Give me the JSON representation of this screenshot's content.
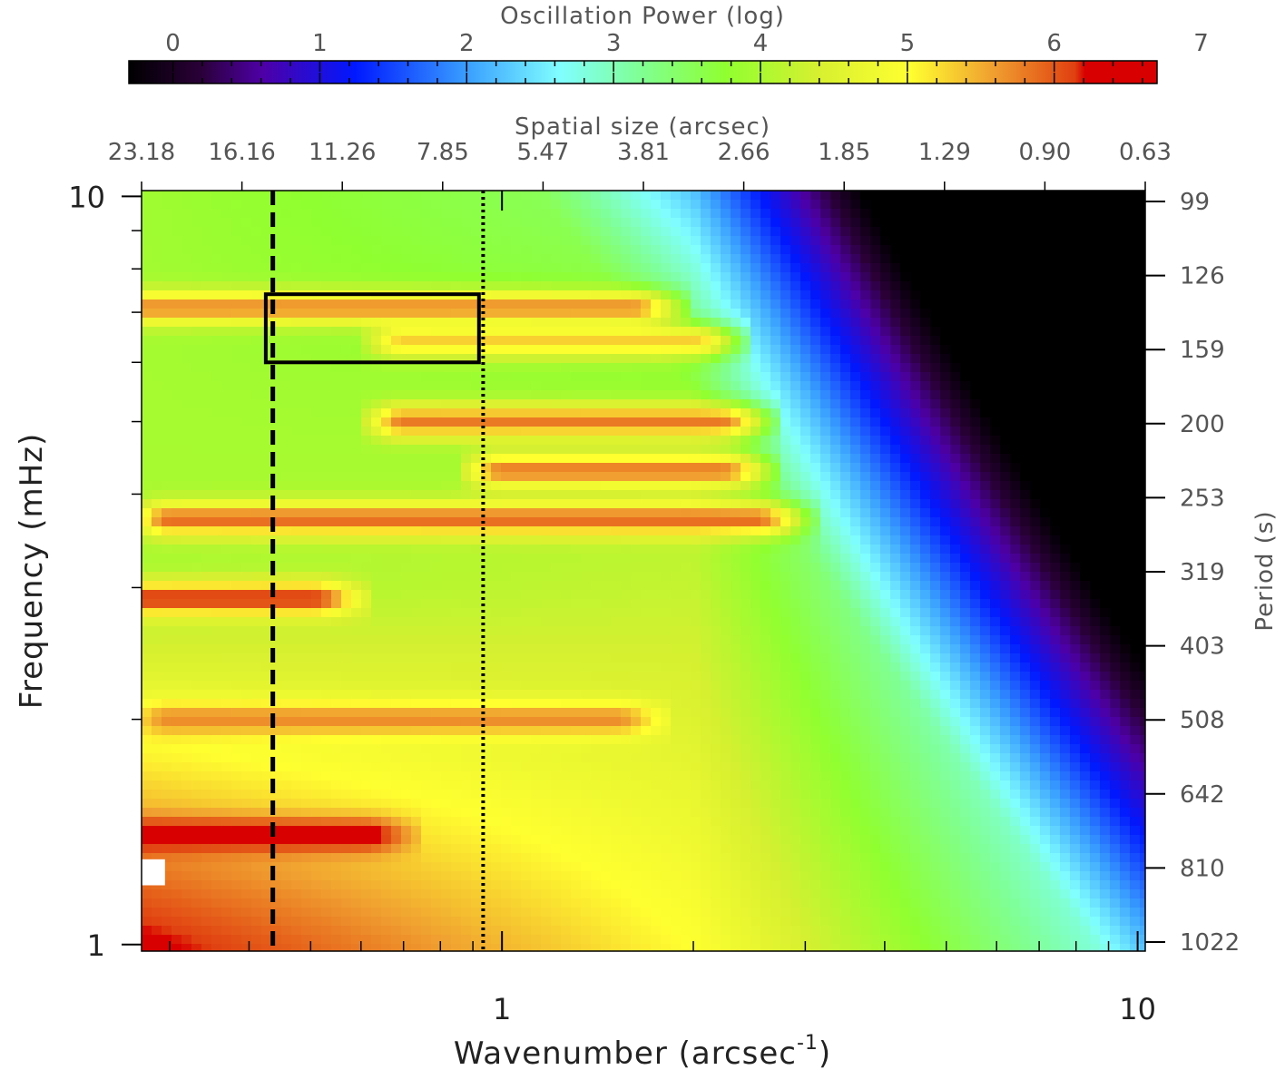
{
  "chart_data": {
    "type": "heatmap",
    "colorbar": {
      "title": "Oscillation Power (log)",
      "range": [
        -0.3,
        6.7
      ],
      "ticks": [
        0,
        1,
        2,
        3,
        4,
        5,
        6,
        7
      ],
      "colormap": "rainbow (black-purple-blue-cyan-green-yellow-orange-red)"
    },
    "x_bottom": {
      "label_main": "Wavenumber (arcsec",
      "label_superscript": "-1",
      "label_close": ")",
      "scale": "log",
      "range": [
        0.271,
        10.28
      ],
      "major_ticks": [
        1,
        10
      ],
      "major_labels": [
        "1",
        "10"
      ],
      "minor_ticks": [
        0.3,
        0.4,
        0.5,
        0.6,
        0.7,
        0.8,
        0.9,
        2,
        3,
        4,
        5,
        6,
        7,
        8,
        9
      ]
    },
    "x_top": {
      "label": "Spatial size (arcsec)",
      "tick_labels": [
        "23.18",
        "16.16",
        "11.26",
        "7.85",
        "5.47",
        "3.81",
        "2.66",
        "1.85",
        "1.29",
        "0.90",
        "0.63"
      ]
    },
    "y_left": {
      "label": "Frequency (mHz)",
      "scale": "log",
      "range": [
        0.98,
        10.18
      ],
      "major_ticks": [
        1,
        10
      ],
      "major_labels": [
        "1",
        "10"
      ],
      "minor_ticks": [
        2,
        3,
        4,
        5,
        6,
        7,
        8,
        9
      ]
    },
    "y_right": {
      "label": "Period (s)",
      "tick_labels": [
        "99",
        "126",
        "159",
        "200",
        "253",
        "319",
        "403",
        "508",
        "642",
        "810",
        "1022"
      ]
    },
    "power_model": {
      "baseline": [
        {
          "k": 0.271,
          "f": 1.0,
          "p": 6.3
        },
        {
          "k": 0.271,
          "f": 3.0,
          "p": 4.0
        },
        {
          "k": 0.271,
          "f": 10.0,
          "p": 3.9
        },
        {
          "k": 2.0,
          "f": 1.0,
          "p": 5.0
        },
        {
          "k": 2.0,
          "f": 10.0,
          "p": 3.4
        },
        {
          "k": 10.0,
          "f": 1.0,
          "p": 2.6
        },
        {
          "k": 10.0,
          "f": 10.0,
          "p": 0.0
        }
      ],
      "ridges": [
        {
          "f": 7.1,
          "k_from": 0.271,
          "k_to": 1.6,
          "p": 5.7
        },
        {
          "f": 6.4,
          "k_from": 0.7,
          "k_to": 2.0,
          "p": 5.3
        },
        {
          "f": 5.0,
          "k_from": 0.7,
          "k_to": 2.2,
          "p": 5.8
        },
        {
          "f": 4.3,
          "k_from": 1.0,
          "k_to": 2.2,
          "p": 5.8
        },
        {
          "f": 3.7,
          "k_from": 0.3,
          "k_to": 2.5,
          "p": 5.9
        },
        {
          "f": 2.9,
          "k_from": 0.271,
          "k_to": 0.5,
          "p": 6.2
        },
        {
          "f": 2.0,
          "k_from": 0.3,
          "k_to": 1.5,
          "p": 5.7
        },
        {
          "f": 1.4,
          "k_from": 0.271,
          "k_to": 0.6,
          "p": 6.5
        }
      ]
    },
    "annotations": {
      "dashed_line_k": 0.436,
      "dotted_line_k": 0.934,
      "box": {
        "k": [
          0.425,
          0.92
        ],
        "f": [
          6.0,
          7.4
        ]
      },
      "masked_cell": {
        "k": [
          0.271,
          0.295
        ],
        "f": [
          1.2,
          1.3
        ]
      }
    }
  }
}
